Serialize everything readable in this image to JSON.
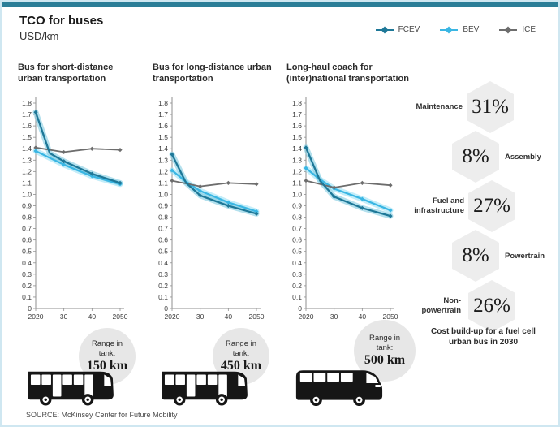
{
  "title": "TCO for buses",
  "subtitle": "USD/km",
  "legend": {
    "items": [
      {
        "label": "FCEV",
        "color": "#1e7898"
      },
      {
        "label": "BEV",
        "color": "#3ab6e3"
      },
      {
        "label": "ICE",
        "color": "#6d6d6d"
      }
    ]
  },
  "chart_data": [
    {
      "type": "line",
      "title": "Bus for short-distance urban transportation",
      "ylabel": "USD/km",
      "ylim": [
        0,
        1.8
      ],
      "y_step": 0.1,
      "x_ticks": [
        "2020",
        "30",
        "40",
        "2050"
      ],
      "x_tick_years": [
        2020,
        2030,
        2040,
        2050
      ],
      "marker_years": [
        2020,
        2030,
        2040,
        2050
      ],
      "series": [
        {
          "name": "FCEV",
          "color": "#1e7898",
          "glow": "#74c6de",
          "x": [
            2020,
            2025,
            2030,
            2040,
            2050
          ],
          "y": [
            1.72,
            1.36,
            1.29,
            1.18,
            1.1
          ]
        },
        {
          "name": "BEV",
          "color": "#3ab6e3",
          "glow": "#92def4",
          "x": [
            2020,
            2025,
            2030,
            2040,
            2050
          ],
          "y": [
            1.38,
            1.32,
            1.26,
            1.16,
            1.09
          ]
        },
        {
          "name": "ICE",
          "color": "#6d6d6d",
          "glow": "#bbbbbb",
          "x": [
            2020,
            2030,
            2040,
            2050
          ],
          "y": [
            1.41,
            1.37,
            1.4,
            1.39
          ]
        }
      ]
    },
    {
      "type": "line",
      "title": "Bus for long-distance urban transportation",
      "ylabel": "USD/km",
      "ylim": [
        0,
        1.8
      ],
      "y_step": 0.1,
      "x_ticks": [
        "2020",
        "30",
        "40",
        "2050"
      ],
      "x_tick_years": [
        2020,
        2030,
        2040,
        2050
      ],
      "marker_years": [
        2020,
        2030,
        2040,
        2050
      ],
      "series": [
        {
          "name": "FCEV",
          "color": "#1e7898",
          "glow": "#74c6de",
          "x": [
            2020,
            2025,
            2030,
            2040,
            2050
          ],
          "y": [
            1.35,
            1.1,
            0.99,
            0.9,
            0.83
          ]
        },
        {
          "name": "BEV",
          "color": "#3ab6e3",
          "glow": "#92def4",
          "x": [
            2020,
            2025,
            2030,
            2040,
            2050
          ],
          "y": [
            1.21,
            1.11,
            1.03,
            0.93,
            0.85
          ]
        },
        {
          "name": "ICE",
          "color": "#6d6d6d",
          "glow": "#bbbbbb",
          "x": [
            2020,
            2030,
            2040,
            2050
          ],
          "y": [
            1.12,
            1.07,
            1.1,
            1.09
          ]
        }
      ]
    },
    {
      "type": "line",
      "title": "Long-haul coach for (inter)national transportation",
      "ylabel": "USD/km",
      "ylim": [
        0,
        1.8
      ],
      "y_step": 0.1,
      "x_ticks": [
        "2020",
        "30",
        "40",
        "2050"
      ],
      "x_tick_years": [
        2020,
        2030,
        2040,
        2050
      ],
      "marker_years": [
        2020,
        2030,
        2040,
        2050
      ],
      "series": [
        {
          "name": "FCEV",
          "color": "#1e7898",
          "glow": "#74c6de",
          "x": [
            2020,
            2025,
            2030,
            2040,
            2050
          ],
          "y": [
            1.41,
            1.12,
            0.98,
            0.88,
            0.81
          ]
        },
        {
          "name": "BEV",
          "color": "#3ab6e3",
          "glow": "#92def4",
          "x": [
            2020,
            2025,
            2030,
            2040,
            2050
          ],
          "y": [
            1.23,
            1.13,
            1.05,
            0.96,
            0.86
          ]
        },
        {
          "name": "ICE",
          "color": "#6d6d6d",
          "glow": "#bbbbbb",
          "x": [
            2020,
            2030,
            2040,
            2050
          ],
          "y": [
            1.12,
            1.06,
            1.1,
            1.08
          ]
        }
      ]
    }
  ],
  "cost_breakdown": {
    "items": [
      {
        "label": "Maintenance",
        "value": "31%",
        "side": "left"
      },
      {
        "label": "Assembly",
        "value": "8%",
        "side": "right"
      },
      {
        "label": "Fuel and infrastructure",
        "value": "27%",
        "side": "left"
      },
      {
        "label": "Powertrain",
        "value": "8%",
        "side": "right"
      },
      {
        "label": "Non-powertrain",
        "value": "26%",
        "side": "left"
      }
    ],
    "caption": "Cost build-up for a fuel cell urban bus in 2030"
  },
  "buses": [
    {
      "icon": "city-bus",
      "range_label": "Range in tank:",
      "range_value": "150 km"
    },
    {
      "icon": "city-bus",
      "range_label": "Range in tank:",
      "range_value": "450 km"
    },
    {
      "icon": "coach-bus",
      "range_label": "Range in tank:",
      "range_value": "500 km"
    }
  ],
  "source": "SOURCE: McKinsey Center for Future Mobility",
  "colors": {
    "accent_teal": "#2b7e98",
    "frame_blue": "#cfe7f1",
    "hexagon_gray": "#ededed",
    "circle_gray": "#e7e7e7"
  }
}
